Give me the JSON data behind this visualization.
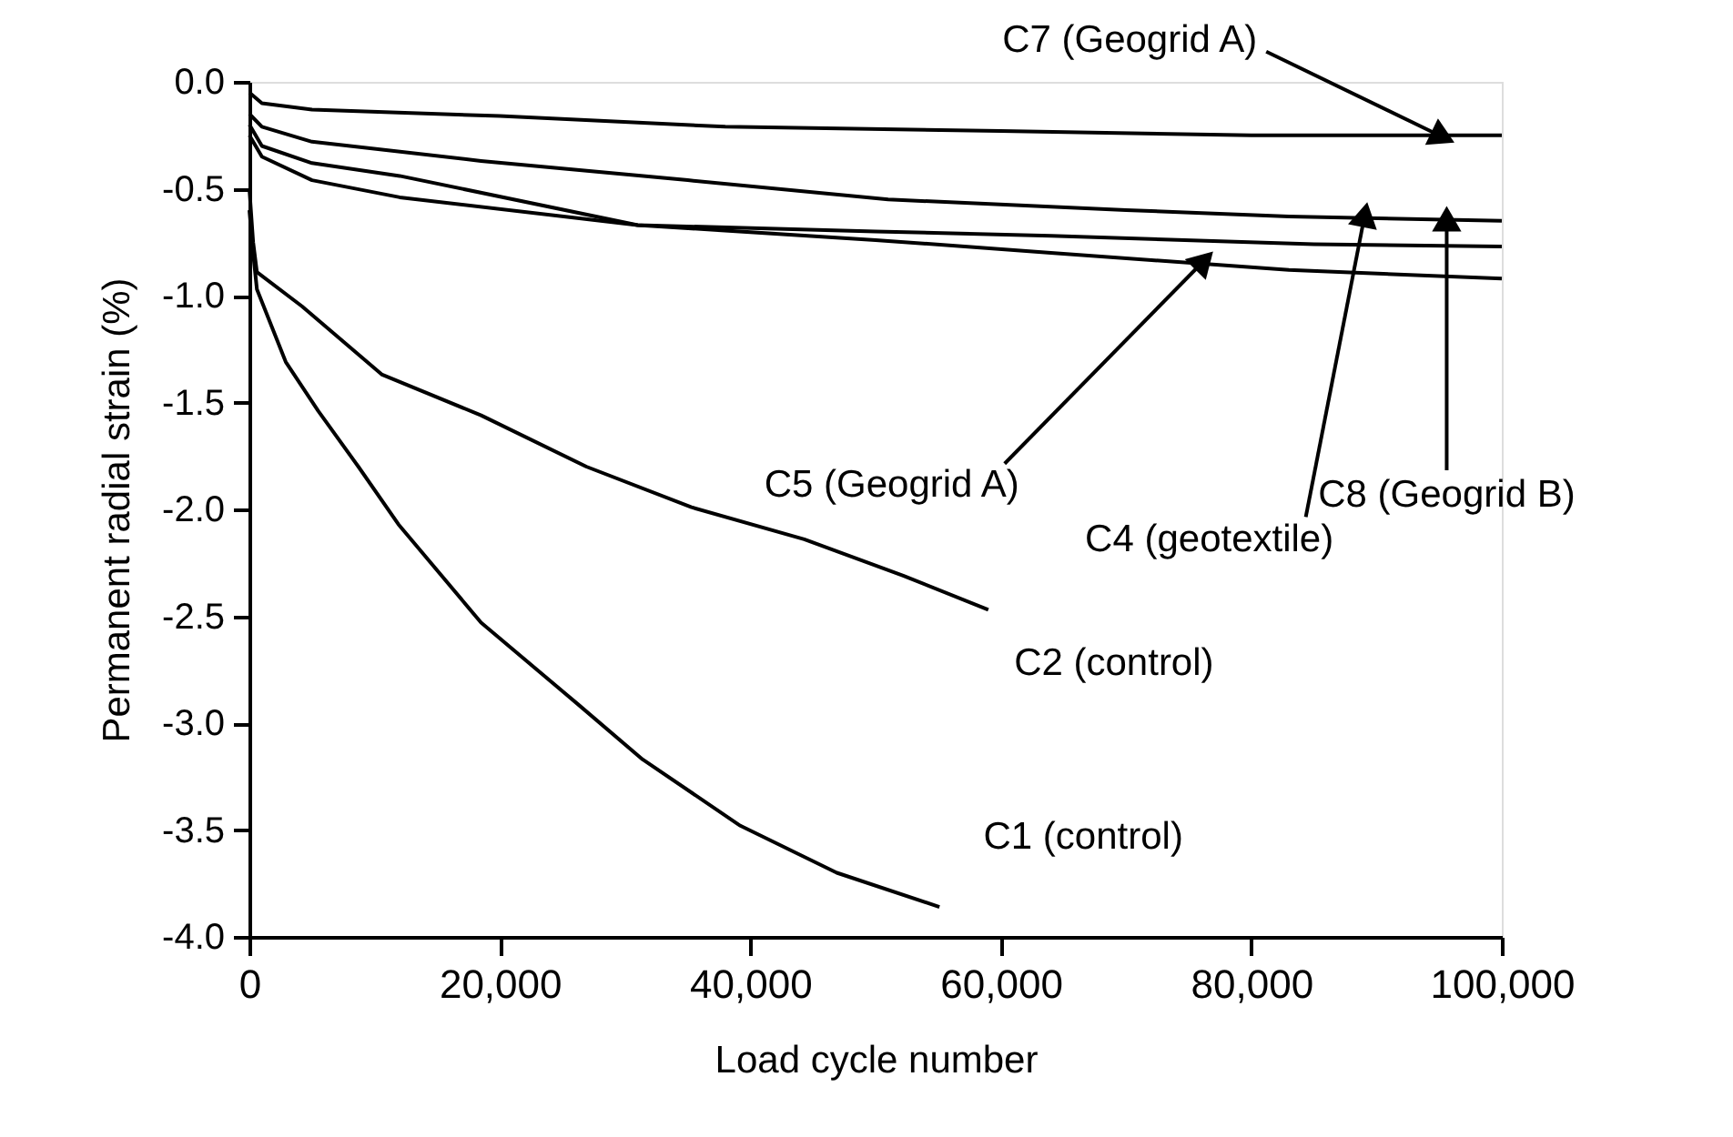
{
  "chart_data": {
    "type": "line",
    "xlabel": "Load cycle number",
    "ylabel": "Permanent radial strain (%)",
    "xlim": [
      0,
      100000
    ],
    "ylim": [
      -4,
      0
    ],
    "xticks": [
      0,
      {
        "value": 20000,
        "label": "20,000"
      },
      {
        "value": 40000,
        "label": "40,000"
      },
      {
        "value": 60000,
        "label": "60,000"
      },
      {
        "value": 80000,
        "label": "80,000"
      },
      {
        "value": 100000,
        "label": "100,000"
      }
    ],
    "yticks": [
      {
        "value": 0,
        "label": "0.0"
      },
      -0.5,
      {
        "value": -1,
        "label": "-1.0"
      },
      -1.5,
      {
        "value": -2,
        "label": "-2.0"
      },
      -2.5,
      {
        "value": -3,
        "label": "-3.0"
      },
      -3.5,
      {
        "value": -4,
        "label": "-4.0"
      }
    ],
    "grid": false,
    "marker": "none",
    "line_style": "solid",
    "series": [
      {
        "color": "#000000",
        "x": [
          0,
          1000,
          5000,
          20000,
          38000,
          60000,
          80000,
          95000,
          100000
        ],
        "values": [
          -0.05,
          -0.1,
          -0.13,
          -0.16,
          -0.21,
          -0.23,
          -0.25,
          -0.25,
          -0.25
        ]
      },
      {
        "color": "#000000",
        "x": [
          0,
          1000,
          5000,
          18500,
          35000,
          51000,
          70000,
          83000,
          100000
        ],
        "values": [
          -0.15,
          -0.21,
          -0.28,
          -0.37,
          -0.46,
          -0.55,
          -0.6,
          -0.63,
          -0.65
        ]
      },
      {
        "color": "#000000",
        "x": [
          0,
          1000,
          5000,
          12000,
          31000,
          50000,
          64000,
          85000,
          100000
        ],
        "values": [
          -0.2,
          -0.3,
          -0.38,
          -0.44,
          -0.67,
          -0.7,
          -0.72,
          -0.76,
          -0.77
        ]
      },
      {
        "color": "#000000",
        "x": [
          0,
          1000,
          5000,
          12000,
          31000,
          50000,
          64000,
          83000,
          100000
        ],
        "values": [
          -0.25,
          -0.35,
          -0.46,
          -0.54,
          -0.67,
          -0.74,
          -0.8,
          -0.88,
          -0.92
        ]
      },
      {
        "color": "#000000",
        "x": [
          0,
          300,
          600,
          4200,
          10600,
          18500,
          26900,
          35300,
          44300,
          52200,
          59000
        ],
        "values": [
          -0.5,
          -0.75,
          -0.89,
          -1.05,
          -1.37,
          -1.56,
          -1.8,
          -1.99,
          -2.14,
          -2.31,
          -2.47
        ]
      },
      {
        "color": "#000000",
        "x": [
          0,
          300,
          600,
          2900,
          5500,
          8700,
          11900,
          18500,
          26200,
          31400,
          39200,
          46900,
          55100
        ],
        "values": [
          -0.6,
          -0.8,
          -0.97,
          -1.31,
          -1.54,
          -1.8,
          -2.07,
          -2.53,
          -2.91,
          -3.17,
          -3.48,
          -3.7,
          -3.86
        ]
      }
    ],
    "annotations": [
      {
        "text": "C7 (Geogrid A)",
        "x": 95000,
        "y": -0.25
      },
      {
        "text": "C5 (Geogrid A)",
        "x": 76000,
        "y": -0.85
      },
      {
        "text": "C4 (geotextile)",
        "x": 89000,
        "y": -0.64
      },
      {
        "text": "C8 (Geogrid B)",
        "x": 95600,
        "y": -0.66
      },
      {
        "text": "C2 (control)",
        "x": 59000,
        "y": -2.47
      },
      {
        "text": "C1 (control)",
        "x": 55100,
        "y": -3.86
      }
    ]
  }
}
